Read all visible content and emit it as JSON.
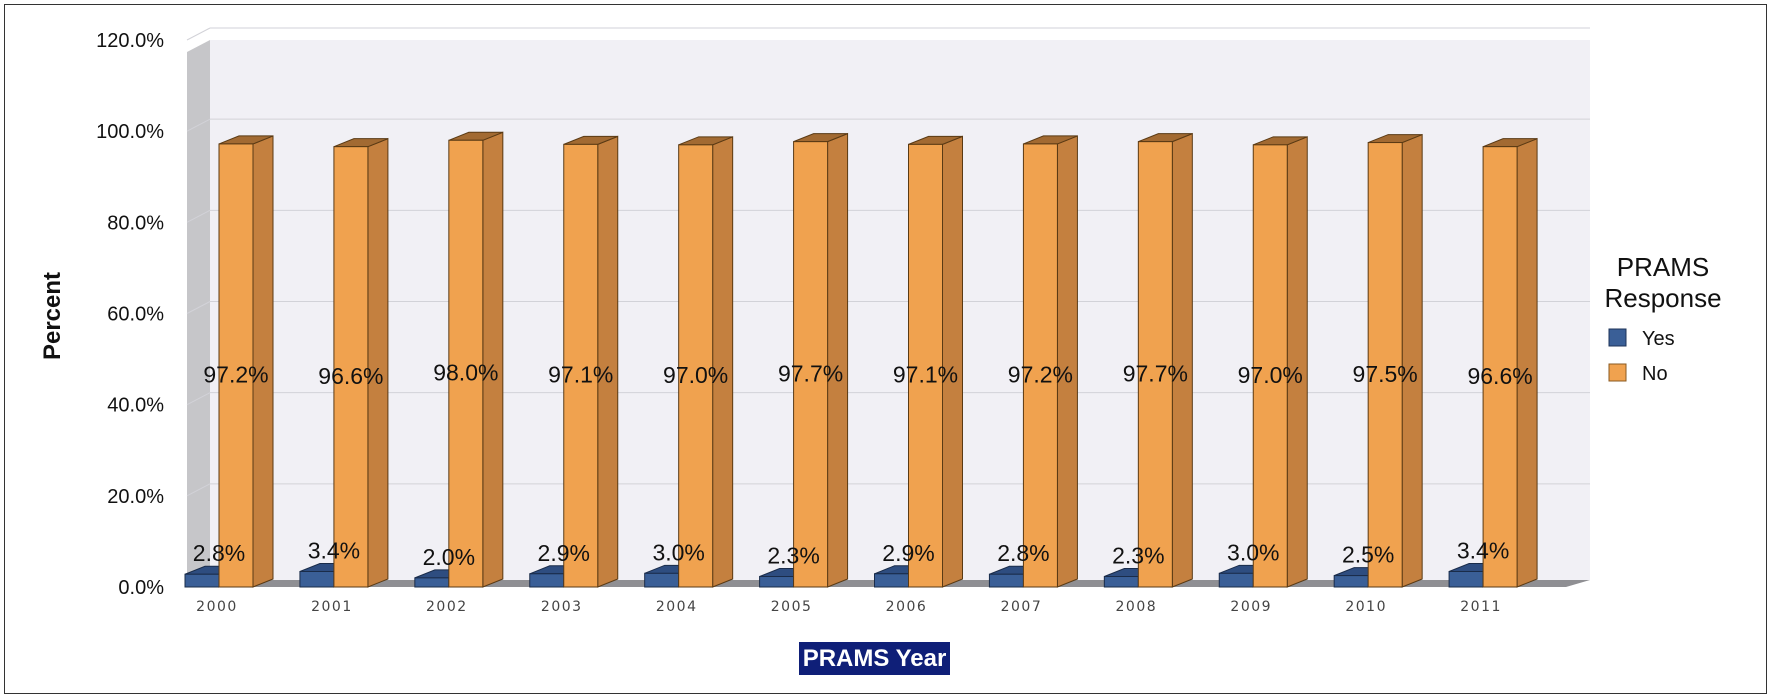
{
  "chart_data": {
    "type": "bar",
    "style": "3d-clustered-column",
    "categories": [
      "2000",
      "2001",
      "2002",
      "2003",
      "2004",
      "2005",
      "2006",
      "2007",
      "2008",
      "2009",
      "2010",
      "2011"
    ],
    "series": [
      {
        "name": "Yes",
        "color": "#3a5f97",
        "values": [
          2.8,
          3.4,
          2.0,
          2.9,
          3.0,
          2.3,
          2.9,
          2.8,
          2.3,
          3.0,
          2.5,
          3.4
        ]
      },
      {
        "name": "No",
        "color": "#f0a24f",
        "values": [
          97.2,
          96.6,
          98.0,
          97.1,
          97.0,
          97.7,
          97.1,
          97.2,
          97.7,
          97.0,
          97.5,
          96.6
        ]
      }
    ],
    "data_labels": {
      "Yes": [
        "2.8%",
        "3.4%",
        "2.0%",
        "2.9%",
        "3.0%",
        "2.3%",
        "2.9%",
        "2.8%",
        "2.3%",
        "3.0%",
        "2.5%",
        "3.4%"
      ],
      "No": [
        "97.2%",
        "96.6%",
        "98.0%",
        "97.1%",
        "97.0%",
        "97.7%",
        "97.1%",
        "97.2%",
        "97.7%",
        "97.0%",
        "97.5%",
        "96.6%"
      ]
    },
    "y_ticks": [
      "0.0%",
      "20.0%",
      "40.0%",
      "60.0%",
      "80.0%",
      "100.0%",
      "120.0%"
    ],
    "ylim": [
      0,
      120
    ],
    "ylabel": "Percent",
    "xlabel": "PRAMS Year",
    "legend": {
      "title_line1": "PRAMS",
      "title_line2": "Response",
      "placement": "right",
      "items": [
        "Yes",
        "No"
      ]
    },
    "grid": true
  }
}
